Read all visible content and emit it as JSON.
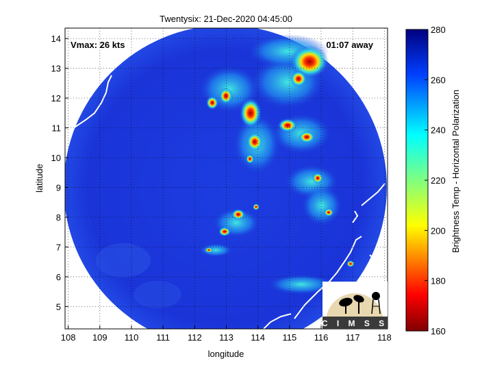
{
  "title": "Twentysix: 21-Dec-2020 04:45:00",
  "annotations": {
    "vmax": "Vmax: 26 kts",
    "away": "01:07 away"
  },
  "axes": {
    "xlabel": "longitude",
    "ylabel": "latitude",
    "xlim": [
      107.9,
      118.1
    ],
    "ylim": [
      4.25,
      14.35
    ],
    "xticks": [
      "108",
      "109",
      "110",
      "111",
      "112",
      "113",
      "114",
      "115",
      "116",
      "117",
      "118"
    ],
    "yticks": [
      "5",
      "6",
      "7",
      "8",
      "9",
      "10",
      "11",
      "12",
      "13",
      "14"
    ],
    "grid": "dotted"
  },
  "colorbar": {
    "label": "Brightness Temp - Horizontal Polarization",
    "min": 160,
    "max": 280,
    "ticks": [
      "280",
      "260",
      "240",
      "220",
      "200",
      "180",
      "160"
    ]
  },
  "logo": {
    "text": "CIMSS"
  },
  "colors": {
    "background_field": "#1a34d8",
    "coast": "#ffffff",
    "cold_core": "#b00000"
  }
}
